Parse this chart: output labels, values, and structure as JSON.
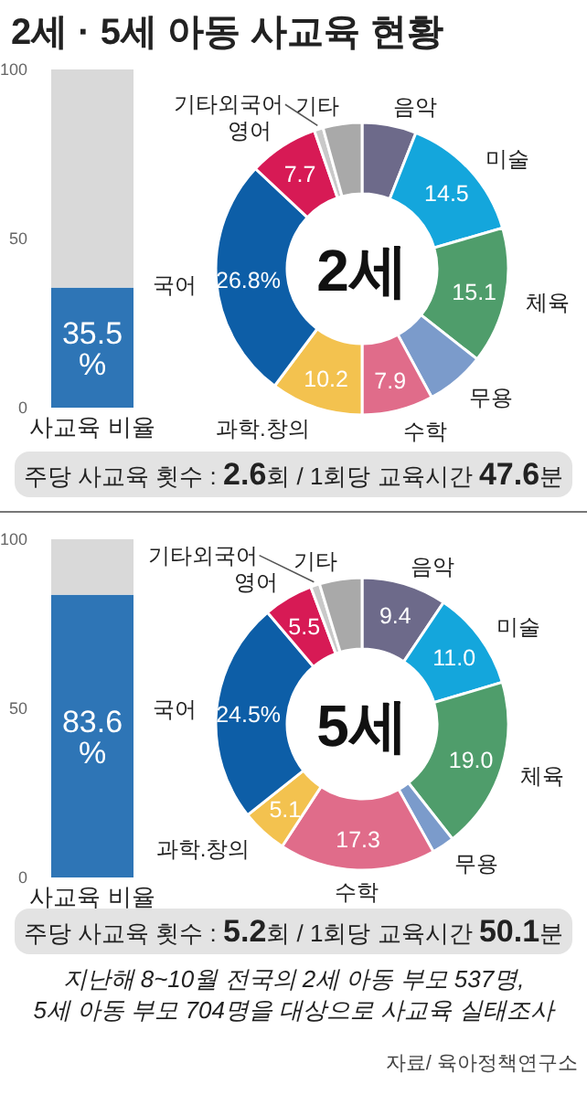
{
  "chart_data": [
    {
      "type": "bar",
      "title": "2세 · 5세 아동 사교육 현황",
      "categories": [
        "사교육 비율"
      ],
      "stacked": true,
      "series": [
        {
          "color": "#2e75b6",
          "values": [
            35.5
          ],
          "value_labels": [
            "35.5%"
          ]
        },
        {
          "color": "#d9d9d9",
          "values": [
            64.5
          ]
        }
      ],
      "ylim": [
        0,
        100
      ],
      "yticks": [
        0,
        50,
        100
      ],
      "annotations": [
        "주당 사교육 횟수 : 2.6회 / 1회당 교육시간 47.6분"
      ]
    },
    {
      "type": "donut",
      "categories": [
        "음악",
        "미술",
        "체육",
        "무용",
        "수학",
        "과학.창의",
        "국어",
        "영어",
        "기타외국어",
        "기타"
      ],
      "values": [
        6.0,
        14.5,
        15.1,
        6.5,
        7.9,
        10.2,
        26.8,
        7.7,
        1.0,
        4.3
      ],
      "value_labels": [
        null,
        "14.5",
        "15.1",
        null,
        "7.9",
        "10.2",
        "26.8%",
        "7.7",
        null,
        null
      ],
      "colors": [
        "#6d6a8a",
        "#14a6dc",
        "#4f9d6b",
        "#7b9bcb",
        "#e06c8a",
        "#f3c24f",
        "#0d5ea7",
        "#d71a55",
        "#c9c9c9",
        "#a9a9a9"
      ],
      "annotations": [
        "2세"
      ]
    },
    {
      "type": "bar",
      "categories": [
        "사교육 비율"
      ],
      "stacked": true,
      "series": [
        {
          "color": "#2e75b6",
          "values": [
            83.6
          ],
          "value_labels": [
            "83.6%"
          ]
        },
        {
          "color": "#d9d9d9",
          "values": [
            16.4
          ]
        }
      ],
      "ylim": [
        0,
        100
      ],
      "yticks": [
        0,
        50,
        100
      ],
      "annotations": [
        "주당 사교육 횟수 : 5.2회 / 1회당 교육시간 50.1분"
      ]
    },
    {
      "type": "donut",
      "categories": [
        "음악",
        "미술",
        "체육",
        "무용",
        "수학",
        "과학.창의",
        "국어",
        "영어",
        "기타외국어",
        "기타"
      ],
      "values": [
        9.4,
        11.0,
        19.0,
        2.5,
        17.3,
        5.1,
        24.5,
        5.5,
        1.0,
        4.7
      ],
      "value_labels": [
        "9.4",
        "11.0",
        "19.0",
        null,
        "17.3",
        "5.1",
        "24.5%",
        "5.5",
        null,
        null
      ],
      "colors": [
        "#6d6a8a",
        "#14a6dc",
        "#4f9d6b",
        "#7b9bcb",
        "#e06c8a",
        "#f3c24f",
        "#0d5ea7",
        "#d71a55",
        "#c9c9c9",
        "#a9a9a9"
      ],
      "annotations": [
        "5세",
        "지난해 8~10월 전국의 2세 아동 부모 537명,",
        "5세 아동 부모 704명을 대상으로 사교육 실태조사",
        "자료/ 육아정책연구소"
      ]
    }
  ]
}
